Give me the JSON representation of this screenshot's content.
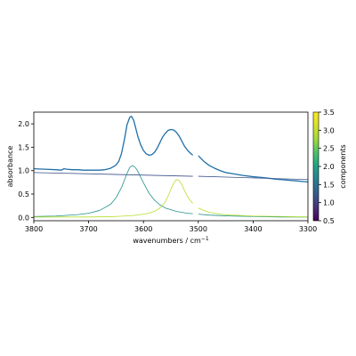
{
  "chart_data": {
    "type": "line",
    "xlabel": "wavenumbers / cm",
    "xlabel_superscript": "−1",
    "ylabel": "absorbance",
    "xlim": [
      3800,
      3300
    ],
    "ylim": [
      -0.07,
      2.25
    ],
    "x_ticks": [
      3800,
      3700,
      3600,
      3500,
      3400,
      3300
    ],
    "y_ticks": [
      0.0,
      0.5,
      1.0,
      1.5,
      2.0
    ],
    "x_tick_labels": [
      "3800",
      "3700",
      "3600",
      "3500",
      "3400",
      "3300"
    ],
    "y_tick_labels": [
      "0.0",
      "0.5",
      "1.0",
      "1.5",
      "2.0"
    ],
    "grid": false,
    "colorbar": {
      "label": "components",
      "range": [
        0.5,
        3.5
      ],
      "colormap": "viridis",
      "ticks": [
        0.5,
        1.0,
        1.5,
        2.0,
        2.5,
        3.0,
        3.5
      ],
      "tick_labels": [
        "0.5",
        "1.0",
        "1.5",
        "2.0",
        "2.5",
        "3.0",
        "3.5"
      ]
    },
    "masked_range": [
      3510,
      3500
    ],
    "series": [
      {
        "role": "spectrum",
        "color": "#1f6faa",
        "x": [
          3800,
          3780,
          3760,
          3750,
          3745,
          3740,
          3730,
          3720,
          3710,
          3700,
          3690,
          3680,
          3670,
          3660,
          3650,
          3645,
          3640,
          3635,
          3630,
          3625,
          3622,
          3618,
          3615,
          3610,
          3605,
          3600,
          3595,
          3590,
          3585,
          3580,
          3575,
          3570,
          3565,
          3560,
          3555,
          3550,
          3545,
          3540,
          3535,
          3530,
          3525,
          3520,
          3515,
          3510,
          3500,
          3495,
          3490,
          3480,
          3470,
          3460,
          3450,
          3440,
          3420,
          3400,
          3380,
          3360,
          3340,
          3320,
          3300
        ],
        "y": [
          1.04,
          1.03,
          1.02,
          1.01,
          1.04,
          1.03,
          1.02,
          1.02,
          1.01,
          1.01,
          1.01,
          1.01,
          1.02,
          1.05,
          1.12,
          1.2,
          1.37,
          1.65,
          1.98,
          2.14,
          2.16,
          2.08,
          1.95,
          1.72,
          1.55,
          1.43,
          1.36,
          1.33,
          1.34,
          1.39,
          1.48,
          1.6,
          1.72,
          1.8,
          1.86,
          1.88,
          1.87,
          1.82,
          1.74,
          1.63,
          1.52,
          1.44,
          1.38,
          1.33,
          1.32,
          1.26,
          1.2,
          1.11,
          1.05,
          1.0,
          0.96,
          0.94,
          0.9,
          0.87,
          0.85,
          0.82,
          0.8,
          0.78,
          0.76
        ]
      },
      {
        "role": "component",
        "color": "#3b528b",
        "x": [
          3800,
          3510,
          3500,
          3300
        ],
        "y": [
          0.96,
          0.88,
          0.88,
          0.81
        ]
      },
      {
        "role": "component",
        "color": "#21918c",
        "x": [
          3800,
          3760,
          3720,
          3700,
          3680,
          3660,
          3650,
          3640,
          3630,
          3625,
          3620,
          3615,
          3610,
          3600,
          3590,
          3580,
          3570,
          3560,
          3540,
          3520,
          3510,
          3500,
          3480,
          3440,
          3400,
          3350,
          3300
        ],
        "y": [
          0.02,
          0.03,
          0.06,
          0.09,
          0.15,
          0.28,
          0.42,
          0.64,
          0.94,
          1.07,
          1.11,
          1.07,
          0.98,
          0.74,
          0.52,
          0.37,
          0.27,
          0.2,
          0.13,
          0.09,
          0.08,
          0.07,
          0.05,
          0.03,
          0.02,
          0.01,
          0.01
        ]
      },
      {
        "role": "component",
        "color": "#b5de2b",
        "x": [
          3800,
          3700,
          3650,
          3620,
          3600,
          3590,
          3580,
          3570,
          3565,
          3560,
          3555,
          3550,
          3545,
          3540,
          3535,
          3530,
          3525,
          3520,
          3515,
          3510,
          3500,
          3490,
          3480,
          3460,
          3440,
          3400,
          3350,
          3300
        ],
        "y": [
          0.01,
          0.01,
          0.02,
          0.04,
          0.07,
          0.09,
          0.13,
          0.2,
          0.26,
          0.34,
          0.46,
          0.6,
          0.73,
          0.81,
          0.79,
          0.7,
          0.57,
          0.45,
          0.37,
          0.3,
          0.2,
          0.15,
          0.11,
          0.07,
          0.05,
          0.03,
          0.02,
          0.01
        ]
      }
    ]
  }
}
